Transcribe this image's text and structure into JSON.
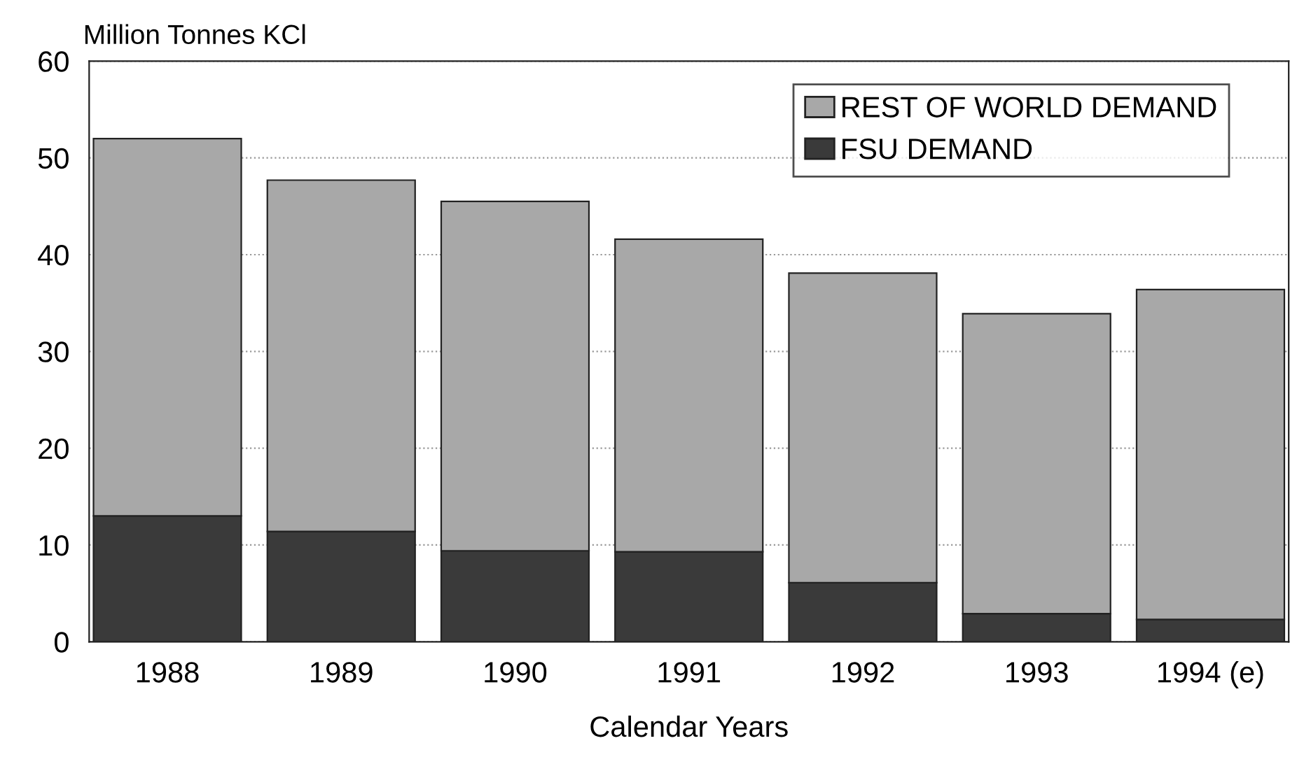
{
  "chart_data": {
    "type": "bar",
    "stacked": true,
    "ylabel": "Million Tonnes KCl",
    "xlabel": "Calendar Years",
    "categories": [
      "1988",
      "1989",
      "1990",
      "1991",
      "1992",
      "1993",
      "1994 (e)"
    ],
    "series": [
      {
        "name": "FSU DEMAND",
        "color": "#3a3a3a",
        "values": [
          13.0,
          11.4,
          9.4,
          9.3,
          6.1,
          2.9,
          2.3
        ]
      },
      {
        "name": "REST OF WORLD DEMAND",
        "color": "#a8a8a8",
        "values": [
          39.0,
          36.3,
          36.1,
          32.3,
          32.0,
          31.0,
          34.1
        ]
      }
    ],
    "ylim": [
      0,
      60
    ],
    "yticks": [
      0,
      10,
      20,
      30,
      40,
      50,
      60
    ],
    "grid": "y",
    "legend": "top right"
  }
}
